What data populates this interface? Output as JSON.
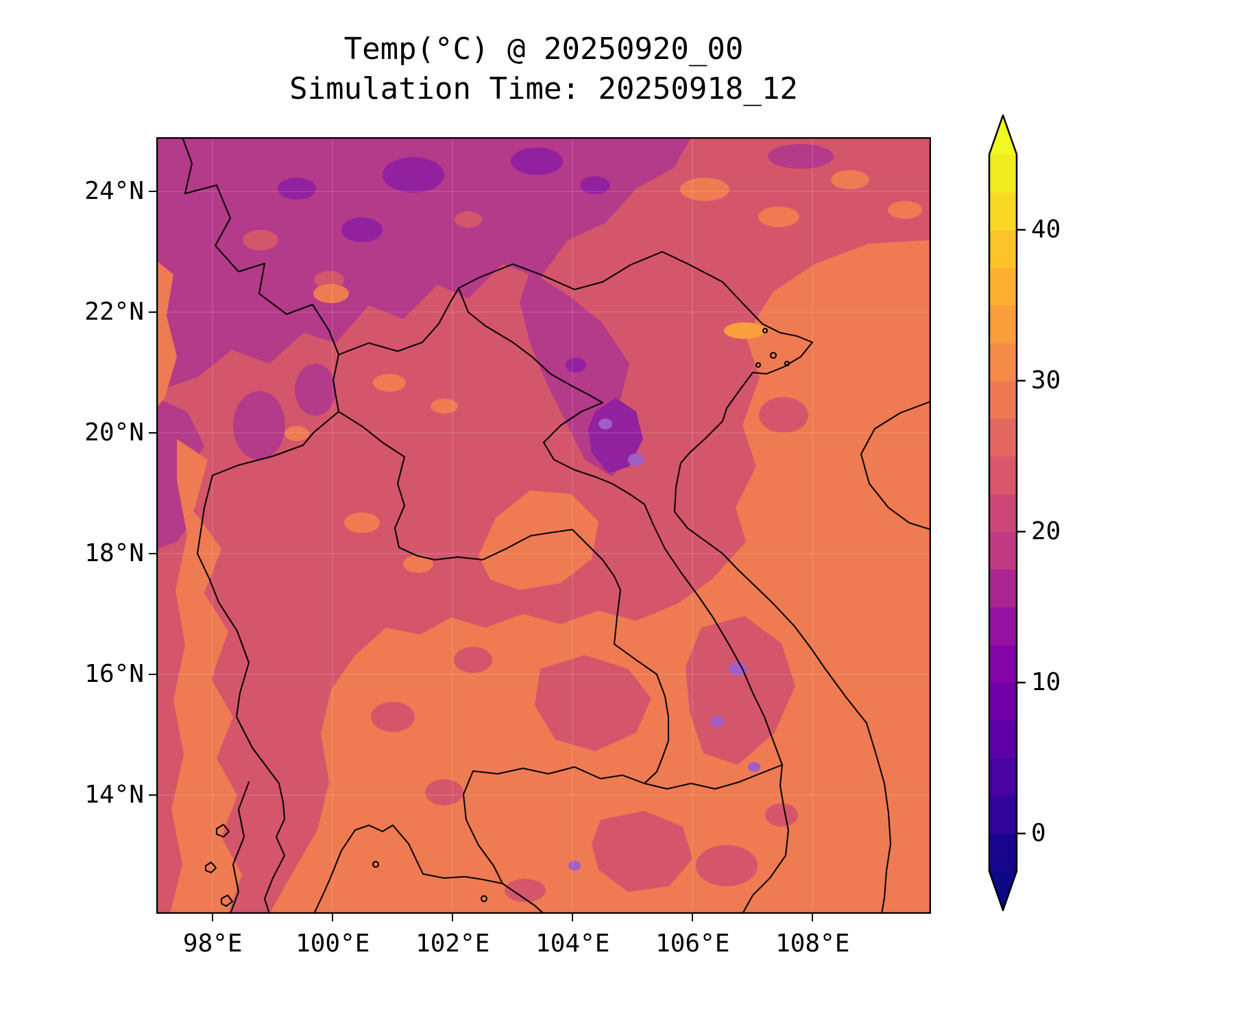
{
  "figure": {
    "background": "#ffffff",
    "title_line1": "Temp(°C) @ 20250920_00",
    "title_line2": "Simulation Time: 20250918_12"
  },
  "axes": {
    "y_ticks": [
      {
        "value": 24,
        "label": "24°N"
      },
      {
        "value": 22,
        "label": "22°N"
      },
      {
        "value": 20,
        "label": "20°N"
      },
      {
        "value": 18,
        "label": "18°N"
      },
      {
        "value": 16,
        "label": "16°N"
      },
      {
        "value": 14,
        "label": "14°N"
      }
    ],
    "x_ticks": [
      {
        "value": 98,
        "label": "98°E"
      },
      {
        "value": 100,
        "label": "100°E"
      },
      {
        "value": 102,
        "label": "102°E"
      },
      {
        "value": 104,
        "label": "104°E"
      },
      {
        "value": 106,
        "label": "106°E"
      },
      {
        "value": 108,
        "label": "108°E"
      }
    ]
  },
  "colorbar": {
    "vmin": -2.5,
    "vmax": 45,
    "ticks": [
      {
        "value": 0,
        "label": "0"
      },
      {
        "value": 10,
        "label": "10"
      },
      {
        "value": 20,
        "label": "20"
      },
      {
        "value": 30,
        "label": "30"
      },
      {
        "value": 40,
        "label": "40"
      }
    ],
    "segment_colors": [
      "#17068c",
      "#33049b",
      "#4903a1",
      "#5d01a6",
      "#7100a8",
      "#8305a7",
      "#9511a1",
      "#ab2693",
      "#c03a83",
      "#cc4778",
      "#d8576b",
      "#e3675f",
      "#ed7953",
      "#f58b47",
      "#fa9d3b",
      "#fdb030",
      "#fcc328",
      "#f8d825",
      "#f1ec20"
    ],
    "under_color": "#0d0887",
    "over_color": "#f0f921"
  },
  "map": {
    "border": "#000000",
    "grid": "#ffffff",
    "base": "#d4566b",
    "magenta": "#b43a8a",
    "purple": "#92219f",
    "violet": "#a15ec6",
    "orange": "#ee7b51",
    "light_orange": "#f9a03c"
  },
  "chart_data": {
    "type": "heatmap",
    "title": "Temp(°C) @ 20250920_00",
    "subtitle": "Simulation Time: 20250918_12",
    "units": "°C",
    "colormap": "plasma",
    "xlim": [
      97.05,
      109.97
    ],
    "ylim": [
      12.05,
      24.9
    ],
    "x_tick_labels": [
      "98°E",
      "100°E",
      "102°E",
      "104°E",
      "106°E",
      "108°E"
    ],
    "y_tick_labels": [
      "24°N",
      "22°N",
      "20°N",
      "18°N",
      "16°N",
      "14°N"
    ],
    "colorbar_ticks": [
      0,
      10,
      20,
      30,
      40
    ],
    "colorbar_range": [
      -2.5,
      45
    ],
    "contour_level_step": 2.5,
    "grid": false,
    "legend_position": "right-colorbar",
    "lons": [
      98,
      100,
      102,
      104,
      106,
      108
    ],
    "lats": [
      24,
      22,
      20,
      18,
      16,
      14
    ],
    "values": [
      [
        22,
        17,
        16,
        17,
        22,
        26
      ],
      [
        21,
        19,
        19,
        22,
        25,
        27
      ],
      [
        23,
        22,
        21,
        14,
        25,
        27
      ],
      [
        26,
        24,
        26,
        23,
        26,
        27
      ],
      [
        27,
        26,
        27,
        26,
        22,
        27
      ],
      [
        27,
        27,
        26,
        26,
        24,
        27
      ]
    ]
  }
}
